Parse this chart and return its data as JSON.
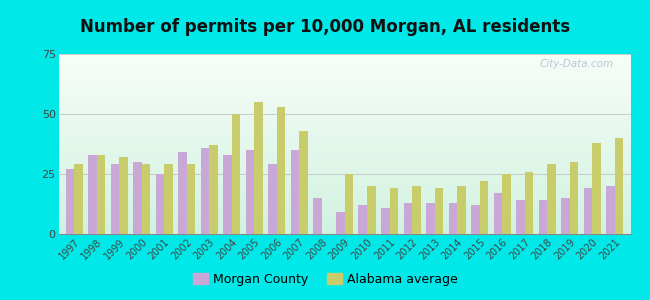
{
  "title": "Number of permits per 10,000 Morgan, AL residents",
  "years": [
    1997,
    1998,
    1999,
    2000,
    2001,
    2002,
    2003,
    2004,
    2005,
    2006,
    2007,
    2008,
    2009,
    2010,
    2011,
    2012,
    2013,
    2014,
    2015,
    2016,
    2017,
    2018,
    2019,
    2020,
    2021
  ],
  "morgan_county": [
    27,
    33,
    29,
    30,
    25,
    34,
    36,
    33,
    35,
    29,
    35,
    15,
    9,
    12,
    11,
    13,
    13,
    13,
    12,
    17,
    14,
    14,
    15,
    19,
    20
  ],
  "alabama_avg": [
    29,
    33,
    32,
    29,
    29,
    29,
    37,
    50,
    55,
    53,
    43,
    0,
    25,
    20,
    19,
    20,
    19,
    20,
    22,
    25,
    26,
    29,
    30,
    38,
    40
  ],
  "morgan_color": "#c9a8d8",
  "alabama_color": "#c8cc6a",
  "outer_background": "#00e8e8",
  "ylim": [
    0,
    75
  ],
  "yticks": [
    0,
    25,
    50,
    75
  ],
  "legend_morgan": "Morgan County",
  "legend_alabama": "Alabama average",
  "bar_width": 0.38
}
